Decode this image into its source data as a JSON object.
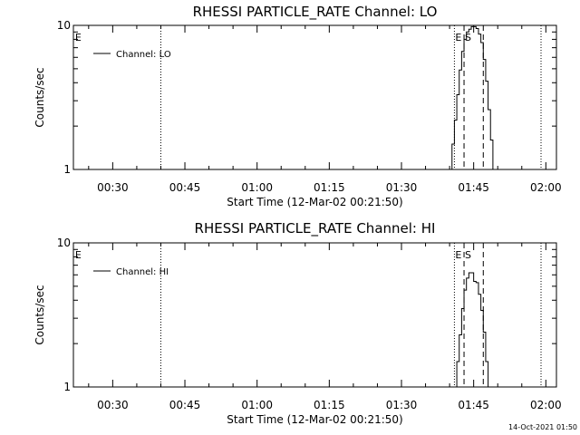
{
  "chart_data": [
    {
      "type": "line",
      "title": "RHESSI PARTICLE_RATE Channel: LO",
      "xlabel": "Start Time (12-Mar-02 00:21:50)",
      "ylabel": "Counts/sec",
      "y_scale": "log",
      "ylim": [
        1,
        10
      ],
      "y_ticks": [
        "1",
        "10"
      ],
      "x_ticks": [
        "00:30",
        "00:45",
        "01:00",
        "01:15",
        "01:30",
        "01:45",
        "02:00"
      ],
      "legend": {
        "label": "Channel: LO",
        "placement": "top-left"
      },
      "event_markers": {
        "E": [
          "00:22",
          "01:41"
        ],
        "S": [
          "01:43"
        ]
      },
      "dotted_lines": [
        "00:40",
        "01:41",
        "01:59"
      ],
      "dashed_lines": [
        "01:43",
        "01:47"
      ],
      "series": [
        {
          "name": "Channel: LO",
          "x": [
            "01:40",
            "01:40.5",
            "01:41",
            "01:41.5",
            "01:42",
            "01:42.5",
            "01:43",
            "01:43.5",
            "01:44",
            "01:44.5",
            "01:45",
            "01:45.5",
            "01:46",
            "01:46.5",
            "01:47",
            "01:47.5",
            "01:48",
            "01:48.5",
            "01:49"
          ],
          "y": [
            1.0,
            1.5,
            2.2,
            3.3,
            4.9,
            6.6,
            8.0,
            9.0,
            9.4,
            9.8,
            9.8,
            9.5,
            8.7,
            7.6,
            5.8,
            4.1,
            2.6,
            1.6,
            1.0
          ]
        }
      ]
    },
    {
      "type": "line",
      "title": "RHESSI PARTICLE_RATE Channel: HI",
      "xlabel": "Start Time (12-Mar-02 00:21:50)",
      "ylabel": "Counts/sec",
      "y_scale": "log",
      "ylim": [
        1,
        10
      ],
      "y_ticks": [
        "1",
        "10"
      ],
      "x_ticks": [
        "00:30",
        "00:45",
        "01:00",
        "01:15",
        "01:30",
        "01:45",
        "02:00"
      ],
      "legend": {
        "label": "Channel: HI",
        "placement": "top-left"
      },
      "event_markers": {
        "E": [
          "00:22",
          "01:41"
        ],
        "S": [
          "01:43"
        ]
      },
      "dotted_lines": [
        "00:40",
        "01:41",
        "01:59"
      ],
      "dashed_lines": [
        "01:43",
        "01:47"
      ],
      "series": [
        {
          "name": "Channel: HI",
          "x": [
            "01:41",
            "01:41.5",
            "01:42",
            "01:42.5",
            "01:43",
            "01:43.5",
            "01:44",
            "01:44.5",
            "01:45",
            "01:45.5",
            "01:46",
            "01:46.5",
            "01:47",
            "01:47.5",
            "01:48"
          ],
          "y": [
            1.0,
            1.5,
            2.3,
            3.5,
            4.7,
            5.7,
            6.2,
            6.2,
            5.4,
            5.3,
            4.4,
            3.4,
            2.4,
            1.5,
            1.0
          ]
        }
      ]
    }
  ],
  "timestamp": "14-Oct-2021 01:50"
}
